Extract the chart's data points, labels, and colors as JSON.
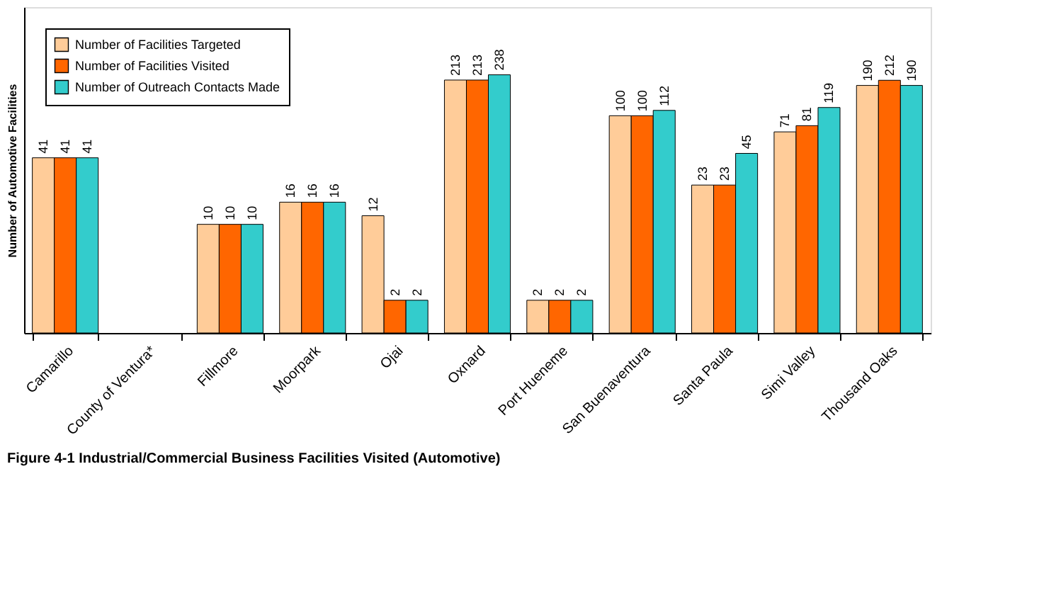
{
  "chart_data": {
    "type": "bar",
    "title": "Figure 4-1 Industrial/Commercial Business Facilities Visited (Automotive)",
    "ylabel": "Number of Automotive Facilities",
    "categories": [
      "Camarillo",
      "County of Ventura*",
      "Fillmore",
      "Moorpark",
      "Ojai",
      "Oxnard",
      "Port Hueneme",
      "San Buenaventura",
      "Santa Paula",
      "Simi Valley",
      "Thousand Oaks"
    ],
    "series": [
      {
        "name": "Number of Facilities Targeted",
        "color": "#ffcc99",
        "values": [
          41,
          null,
          10,
          16,
          12,
          213,
          2,
          100,
          23,
          71,
          190
        ]
      },
      {
        "name": "Number of Facilities Visited",
        "color": "#ff6600",
        "values": [
          41,
          null,
          10,
          16,
          2,
          213,
          2,
          100,
          23,
          81,
          212
        ]
      },
      {
        "name": "Number of Outreach Contacts Made",
        "color": "#33cccc",
        "values": [
          41,
          null,
          10,
          16,
          2,
          238,
          2,
          112,
          45,
          119,
          190
        ]
      }
    ],
    "log": true,
    "ylim": [
      1,
      1000
    ],
    "tick_labels": "x",
    "grid": false,
    "legend": "top left",
    "data_labels": true
  }
}
